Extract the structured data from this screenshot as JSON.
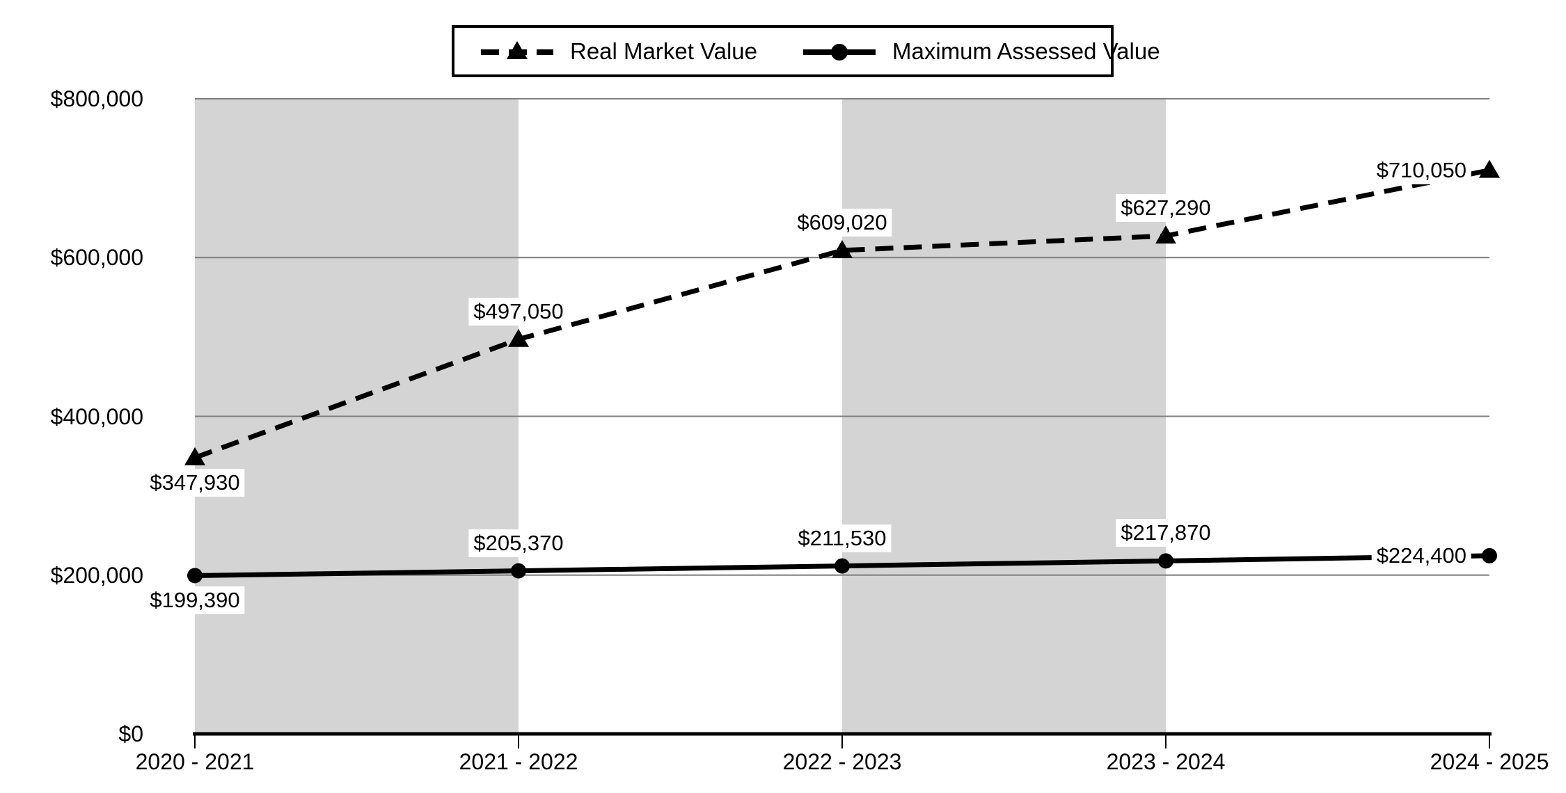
{
  "chart_data": {
    "type": "line",
    "title": "",
    "xlabel": "",
    "ylabel": "",
    "categories": [
      "2020 - 2021",
      "2021 - 2022",
      "2022 - 2023",
      "2023 - 2024",
      "2024 - 2025"
    ],
    "series": [
      {
        "name": "Real Market Value",
        "line_style": "dashed",
        "marker": "triangle",
        "color": "#000000",
        "values": [
          347930,
          497050,
          609020,
          627290,
          710050
        ],
        "point_labels": [
          "$347,930",
          "$497,050",
          "$609,020",
          "$627,290",
          "$710,050"
        ]
      },
      {
        "name": "Maximum Assessed Value",
        "line_style": "solid",
        "marker": "circle",
        "color": "#000000",
        "values": [
          199390,
          205370,
          211530,
          217870,
          224400
        ],
        "point_labels": [
          "$199,390",
          "$205,370",
          "$211,530",
          "$217,870",
          "$224,400"
        ]
      }
    ],
    "ylim": [
      0,
      800000
    ],
    "ytick_interval": 200000,
    "yticks": [
      {
        "value": 0,
        "label": "$0"
      },
      {
        "value": 200000,
        "label": "$200,000"
      },
      {
        "value": 400000,
        "label": "$400,000"
      },
      {
        "value": 600000,
        "label": "$600,000"
      },
      {
        "value": 800000,
        "label": "$800,000"
      }
    ],
    "grid": "horizontal",
    "legend_position": "top-center",
    "band_intervals": [
      [
        0,
        1
      ],
      [
        2,
        3
      ]
    ],
    "colors": {
      "series": "#000000",
      "gridline": "#7f7f7f",
      "axis": "#000000",
      "band": "#d4d4d4",
      "background": "#ffffff",
      "label_background": "#ffffff"
    }
  }
}
